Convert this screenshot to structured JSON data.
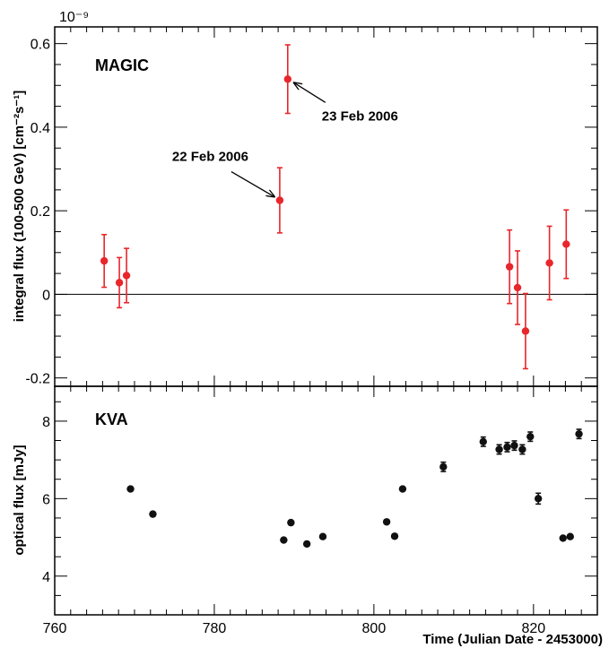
{
  "chart_data": [
    {
      "type": "scatter",
      "panel": "top",
      "title": "MAGIC",
      "ylabel": "integral flux (100-500 GeV) [cm⁻²s⁻¹]",
      "y_multiplier": "10⁻⁹",
      "xlim": [
        760,
        828
      ],
      "ylim": [
        -0.22,
        0.64
      ],
      "x_ticks": [
        760,
        780,
        800,
        820
      ],
      "y_ticks": [
        {
          "value": -0.2,
          "label": "-0.2"
        },
        {
          "value": 0,
          "label": "0"
        },
        {
          "value": 0.2,
          "label": "0.2"
        },
        {
          "value": 0.4,
          "label": "0.4"
        },
        {
          "value": 0.6,
          "label": "0.6"
        }
      ],
      "zero_line": true,
      "color": "#e8262b",
      "series": [
        {
          "points": [
            {
              "x": 766.2,
              "y": 0.08,
              "err": 0.063
            },
            {
              "x": 768.1,
              "y": 0.028,
              "err": 0.06
            },
            {
              "x": 769.0,
              "y": 0.045,
              "err": 0.065
            },
            {
              "x": 788.2,
              "y": 0.225,
              "err": 0.078
            },
            {
              "x": 789.2,
              "y": 0.515,
              "err": 0.082
            },
            {
              "x": 817.0,
              "y": 0.066,
              "err": 0.088
            },
            {
              "x": 818.0,
              "y": 0.016,
              "err": 0.088
            },
            {
              "x": 819.0,
              "y": -0.088,
              "err": 0.09
            },
            {
              "x": 822.0,
              "y": 0.075,
              "err": 0.088
            },
            {
              "x": 824.1,
              "y": 0.12,
              "err": 0.082
            }
          ]
        }
      ],
      "annotations": [
        {
          "text": "22 Feb 2006",
          "target_index": 3
        },
        {
          "text": "23 Feb 2006",
          "target_index": 4
        }
      ]
    },
    {
      "type": "scatter",
      "panel": "bottom",
      "title": "KVA",
      "xlabel": "Time (Julian Date - 2453000)",
      "ylabel": "optical flux [mJy]",
      "xlim": [
        760,
        828
      ],
      "ylim": [
        3.0,
        8.9
      ],
      "x_ticks": [
        760,
        780,
        800,
        820
      ],
      "y_ticks": [
        {
          "value": 4,
          "label": "4"
        },
        {
          "value": 6,
          "label": "6"
        },
        {
          "value": 8,
          "label": "8"
        }
      ],
      "color": "#111111",
      "series": [
        {
          "points": [
            {
              "x": 769.5,
              "y": 6.25,
              "err": 0.0
            },
            {
              "x": 772.3,
              "y": 5.6,
              "err": 0.0
            },
            {
              "x": 788.7,
              "y": 4.93,
              "err": 0.0
            },
            {
              "x": 789.6,
              "y": 5.38,
              "err": 0.0
            },
            {
              "x": 791.6,
              "y": 4.83,
              "err": 0.0
            },
            {
              "x": 793.6,
              "y": 5.02,
              "err": 0.0
            },
            {
              "x": 801.6,
              "y": 5.4,
              "err": 0.0
            },
            {
              "x": 802.6,
              "y": 5.03,
              "err": 0.0
            },
            {
              "x": 803.6,
              "y": 6.25,
              "err": 0.0
            },
            {
              "x": 808.7,
              "y": 6.82,
              "err": 0.12
            },
            {
              "x": 813.7,
              "y": 7.47,
              "err": 0.12
            },
            {
              "x": 815.7,
              "y": 7.27,
              "err": 0.12
            },
            {
              "x": 816.7,
              "y": 7.33,
              "err": 0.12
            },
            {
              "x": 817.6,
              "y": 7.37,
              "err": 0.12
            },
            {
              "x": 818.6,
              "y": 7.27,
              "err": 0.12
            },
            {
              "x": 819.6,
              "y": 7.6,
              "err": 0.12
            },
            {
              "x": 820.6,
              "y": 6.0,
              "err": 0.14
            },
            {
              "x": 823.7,
              "y": 4.98,
              "err": 0.0
            },
            {
              "x": 824.6,
              "y": 5.02,
              "err": 0.0
            },
            {
              "x": 825.7,
              "y": 7.67,
              "err": 0.12
            }
          ]
        }
      ]
    }
  ]
}
